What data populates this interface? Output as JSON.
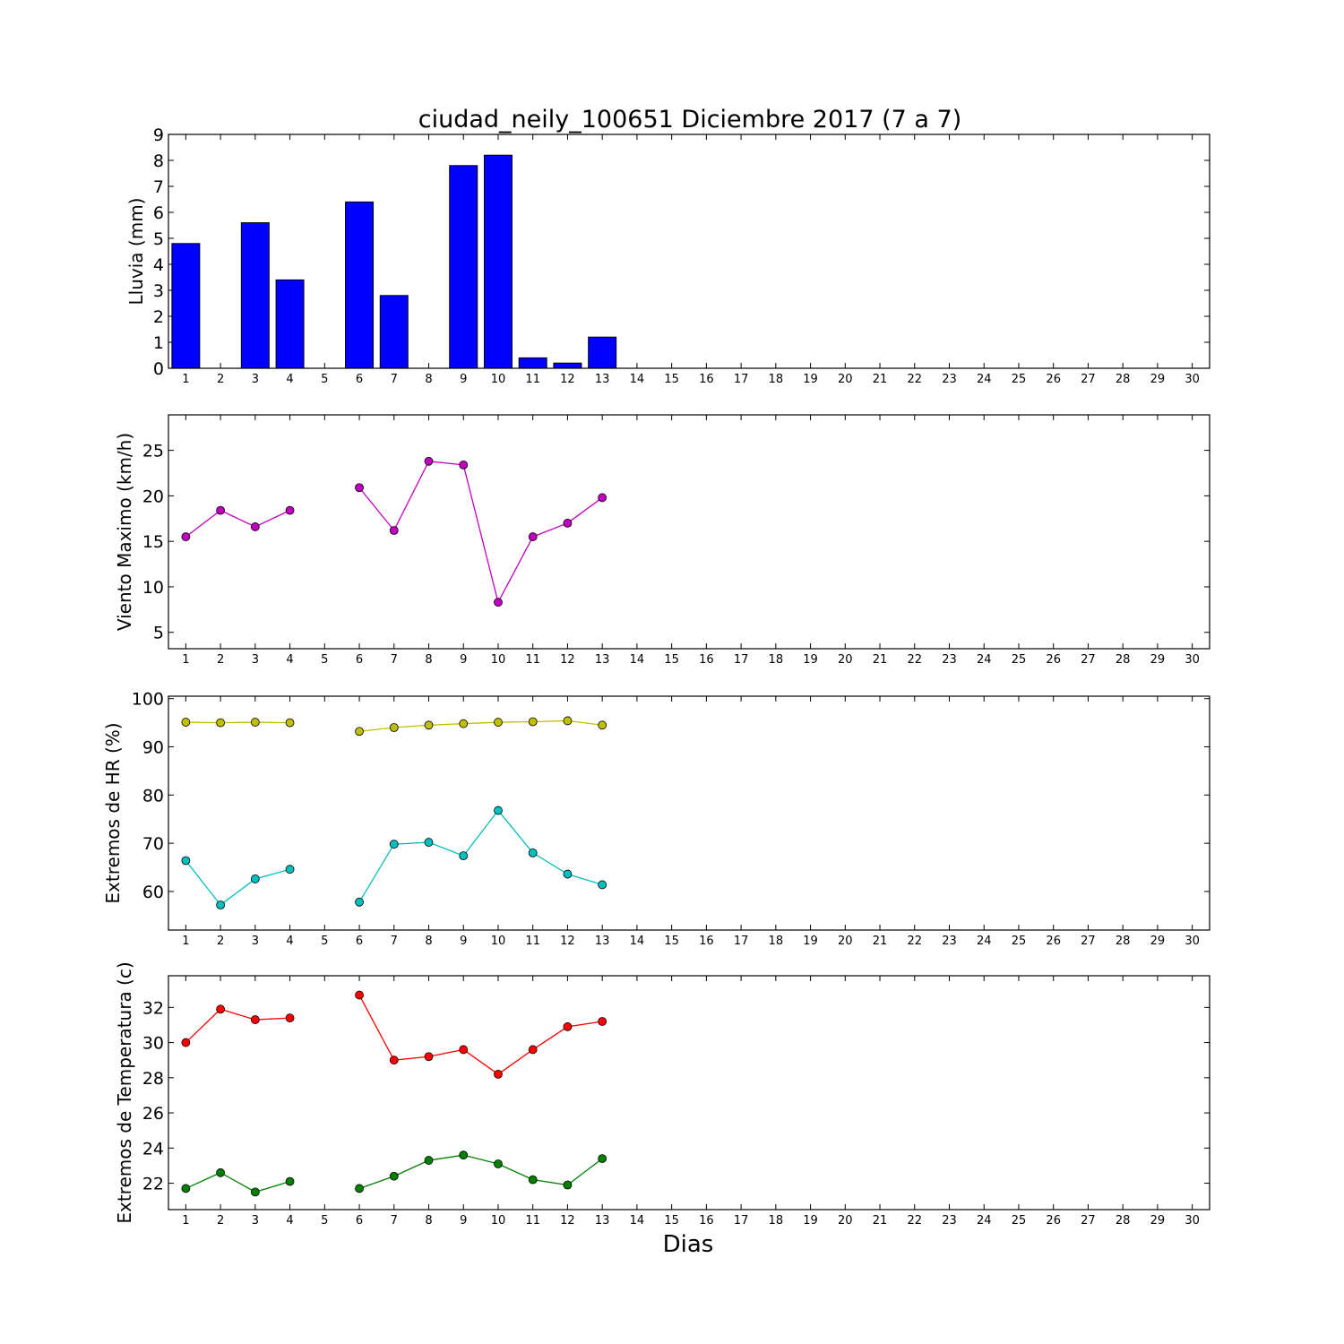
{
  "figure_title": "ciudad_neily_100651 Diciembre 2017  (7 a 7)",
  "xlabel": "Dias",
  "chart_data": [
    {
      "id": "rain",
      "type": "bar",
      "ylabel": "Lluvia (mm)",
      "xlim": [
        0.5,
        30.5
      ],
      "ylim": [
        0,
        9
      ],
      "yticks": [
        0,
        1,
        2,
        3,
        4,
        5,
        6,
        7,
        8,
        9
      ],
      "x": [
        1,
        2,
        3,
        4,
        5,
        6,
        7,
        8,
        9,
        10,
        11,
        12,
        13,
        14,
        15,
        16,
        17,
        18,
        19,
        20,
        21,
        22,
        23,
        24,
        25,
        26,
        27,
        28,
        29,
        30
      ],
      "values": [
        4.8,
        0,
        5.6,
        3.4,
        null,
        6.4,
        2.8,
        0,
        7.8,
        8.2,
        0.4,
        0.2,
        1.2,
        0,
        0,
        0,
        0,
        0,
        0,
        0,
        0,
        0,
        0,
        0,
        0,
        0,
        0,
        0,
        0,
        0
      ],
      "color": "#0000ff"
    },
    {
      "id": "wind",
      "type": "line",
      "ylabel": "Viento Maximo (km/h)",
      "xlim": [
        0.5,
        30.5
      ],
      "ylim": [
        3.2,
        28.9
      ],
      "yticks": [
        5,
        10,
        15,
        20,
        25
      ],
      "x": [
        1,
        2,
        3,
        4,
        5,
        6,
        7,
        8,
        9,
        10,
        11,
        12,
        13
      ],
      "series": [
        {
          "values": [
            15.5,
            18.4,
            16.6,
            18.4,
            null,
            20.9,
            16.2,
            23.8,
            23.4,
            8.3,
            15.5,
            17.0,
            19.8
          ],
          "color": "#bf00bf"
        }
      ]
    },
    {
      "id": "hr",
      "type": "line",
      "ylabel": "Extremos de HR (%)",
      "xlim": [
        0.5,
        30.5
      ],
      "ylim": [
        52,
        100.5
      ],
      "yticks": [
        60,
        70,
        80,
        90,
        100
      ],
      "x": [
        1,
        2,
        3,
        4,
        5,
        6,
        7,
        8,
        9,
        10,
        11,
        12,
        13
      ],
      "series": [
        {
          "values": [
            95.1,
            95.0,
            95.1,
            95.0,
            null,
            93.2,
            94.0,
            94.5,
            94.8,
            95.1,
            95.2,
            95.4,
            94.5
          ],
          "color": "#bfbf00"
        },
        {
          "values": [
            66.4,
            57.2,
            62.6,
            64.6,
            null,
            57.8,
            69.8,
            70.2,
            67.4,
            76.8,
            68.0,
            63.6,
            61.4
          ],
          "color": "#00bfbf"
        }
      ]
    },
    {
      "id": "temp",
      "type": "line",
      "ylabel": "Extremos de Temperatura (c)",
      "xlim": [
        0.5,
        30.5
      ],
      "ylim": [
        20.5,
        33.8
      ],
      "yticks": [
        22,
        24,
        26,
        28,
        30,
        32
      ],
      "x": [
        1,
        2,
        3,
        4,
        5,
        6,
        7,
        8,
        9,
        10,
        11,
        12,
        13
      ],
      "series": [
        {
          "values": [
            30.0,
            31.9,
            31.3,
            31.4,
            null,
            32.7,
            29.0,
            29.2,
            29.6,
            28.2,
            29.6,
            30.9,
            31.2
          ],
          "color": "#ff0000"
        },
        {
          "values": [
            21.7,
            22.6,
            21.5,
            22.1,
            null,
            21.7,
            22.4,
            23.3,
            23.6,
            23.1,
            22.2,
            21.9,
            23.4
          ],
          "color": "#008000"
        }
      ]
    }
  ]
}
